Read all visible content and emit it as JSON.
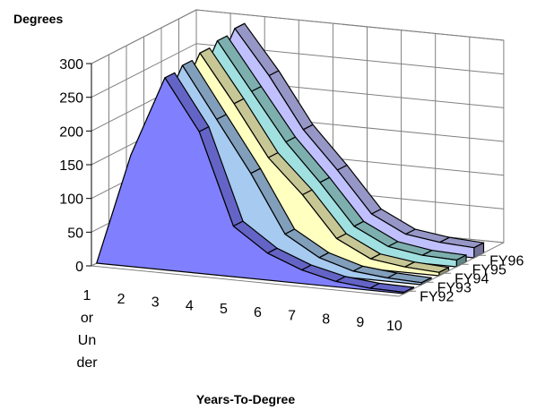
{
  "chart_data": {
    "type": "area",
    "ylabel": "Degrees",
    "xlabel": "Years-To-Degree",
    "categories": [
      "1 or Under",
      "2",
      "3",
      "4",
      "5",
      "6",
      "7",
      "8",
      "9",
      "10"
    ],
    "category_lines": [
      [
        "1",
        "or",
        "Un",
        "der"
      ],
      [
        "2"
      ],
      [
        "3"
      ],
      [
        "4"
      ],
      [
        "5"
      ],
      [
        "6"
      ],
      [
        "7"
      ],
      [
        "8"
      ],
      [
        "9"
      ],
      [
        "10"
      ]
    ],
    "ylim": [
      0,
      300
    ],
    "yticks": [
      "0",
      "50",
      "100",
      "150",
      "200",
      "250",
      "300"
    ],
    "grid": true,
    "series": [
      {
        "name": "FY92",
        "color": "#8080ff",
        "values": [
          0,
          165,
          285,
          210,
          75,
          40,
          20,
          8,
          3,
          2
        ]
      },
      {
        "name": "FY93",
        "color": "#a6caf0",
        "values": [
          0,
          170,
          290,
          215,
          140,
          55,
          25,
          10,
          5,
          3
        ]
      },
      {
        "name": "FY94",
        "color": "#ffffc0",
        "values": [
          0,
          175,
          295,
          225,
          150,
          100,
          40,
          15,
          8,
          5
        ]
      },
      {
        "name": "FY95",
        "color": "#a0e0e0",
        "values": [
          0,
          180,
          300,
          230,
          160,
          105,
          45,
          20,
          12,
          10
        ]
      },
      {
        "name": "FY96",
        "color": "#c0c0ff",
        "values": [
          0,
          185,
          305,
          240,
          165,
          110,
          50,
          25,
          18,
          15
        ]
      }
    ]
  }
}
